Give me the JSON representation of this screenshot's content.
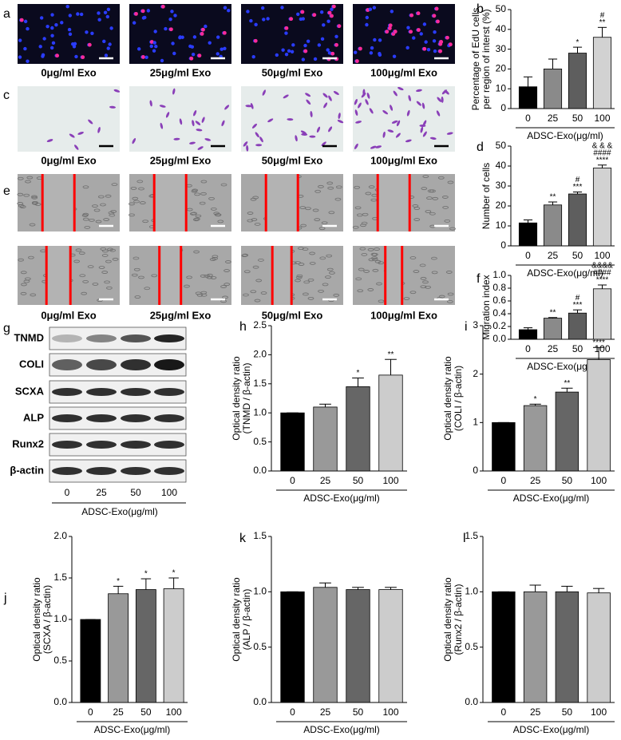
{
  "figure": {
    "image_rows": [
      {
        "label": "a",
        "captions": [
          "0μg/ml Exo",
          "25μg/ml Exo",
          "50μg/ml Exo",
          "100μg/ml Exo"
        ]
      },
      {
        "label": "c",
        "captions": [
          "0μg/ml Exo",
          "25μg/ml Exo",
          "50μg/ml Exo",
          "100μg/ml Exo"
        ]
      },
      {
        "label": "e",
        "captions": [
          "0μg/ml Exo",
          "25μg/ml Exo",
          "50μg/ml Exo",
          "100μg/ml Exo"
        ]
      }
    ],
    "blot": {
      "label": "g",
      "proteins": [
        "TNMD",
        "COLI",
        "SCXA",
        "ALP",
        "Runx2",
        "β-actin"
      ],
      "lanes": [
        "0",
        "25",
        "50",
        "100"
      ],
      "xlabel": "ADSC-Exo(μg/ml)"
    }
  },
  "chart_data": [
    {
      "type": "bar",
      "label": "b",
      "ylabel": [
        "Percentage of EdU cells",
        "per region of interst (%)"
      ],
      "xlabel": "ADSC-Exo(μg/ml)",
      "categories": [
        "0",
        "25",
        "50",
        "100"
      ],
      "values": [
        11,
        20,
        28,
        36
      ],
      "errors": [
        5,
        5,
        3,
        5
      ],
      "colors": [
        "#000000",
        "#8a8a8a",
        "#5e5e5e",
        "#d2d2d2"
      ],
      "annotations": [
        null,
        null,
        [
          "*"
        ],
        [
          "#",
          "**"
        ]
      ],
      "ylim": [
        0,
        50
      ],
      "yticks": [
        0,
        10,
        20,
        30,
        40,
        50
      ]
    },
    {
      "type": "bar",
      "label": "d",
      "ylabel": [
        "Number of cells"
      ],
      "xlabel": "ADSC-Exo(μg/ml)",
      "categories": [
        "0",
        "25",
        "50",
        "100"
      ],
      "values": [
        11.5,
        20.5,
        26,
        39
      ],
      "errors": [
        1.5,
        1.5,
        1,
        1.5
      ],
      "colors": [
        "#000000",
        "#8a8a8a",
        "#5e5e5e",
        "#d2d2d2"
      ],
      "annotations": [
        null,
        [
          "**"
        ],
        [
          "#",
          "***"
        ],
        [
          "& & &",
          "####",
          "****"
        ]
      ],
      "ylim": [
        0,
        50
      ],
      "yticks": [
        0,
        10,
        20,
        30,
        40,
        50
      ]
    },
    {
      "type": "bar",
      "label": "f",
      "ylabel": [
        "Migration index"
      ],
      "xlabel": "ADSC-Exo(μg/ml)",
      "categories": [
        "0",
        "25",
        "50",
        "100"
      ],
      "values": [
        0.15,
        0.33,
        0.41,
        0.79
      ],
      "errors": [
        0.03,
        0.01,
        0.05,
        0.06
      ],
      "colors": [
        "#000000",
        "#8a8a8a",
        "#5e5e5e",
        "#d2d2d2"
      ],
      "annotations": [
        null,
        [
          "**"
        ],
        [
          "#",
          "***"
        ],
        [
          "&&&&",
          "####",
          "****"
        ]
      ],
      "ylim": [
        0,
        1
      ],
      "yticks": [
        {
          "value": 0,
          "label": "0.0"
        },
        0.2,
        0.4,
        0.6,
        0.8,
        {
          "value": 1,
          "label": "1.0"
        }
      ]
    },
    {
      "type": "bar",
      "label": "h",
      "ylabel": [
        "Optical density ratio",
        "(TNMD / β-actin)"
      ],
      "xlabel": "ADSC-Exo(μg/ml)",
      "categories": [
        "0",
        "25",
        "50",
        "100"
      ],
      "values": [
        1.0,
        1.1,
        1.45,
        1.65
      ],
      "errors": [
        0,
        0.05,
        0.15,
        0.27
      ],
      "colors": [
        "#000000",
        "#999999",
        "#666666",
        "#cccccc"
      ],
      "annotations": [
        null,
        null,
        [
          "*"
        ],
        [
          "**"
        ]
      ],
      "ylim": [
        0,
        2.5
      ],
      "yticks": [
        {
          "value": 0,
          "label": "0.0"
        },
        0.5,
        {
          "value": 1,
          "label": "1.0"
        },
        1.5,
        {
          "value": 2,
          "label": "2.0"
        },
        2.5
      ]
    },
    {
      "type": "bar",
      "label": "i",
      "ylabel": [
        "Optical density ratio",
        "(COLI / β-actin)"
      ],
      "xlabel": "ADSC-Exo(μg/ml)",
      "categories": [
        "0",
        "25",
        "50",
        "100"
      ],
      "values": [
        1.0,
        1.35,
        1.63,
        2.3
      ],
      "errors": [
        0,
        0.03,
        0.08,
        0.25
      ],
      "colors": [
        "#000000",
        "#999999",
        "#666666",
        "#cccccc"
      ],
      "annotations": [
        null,
        [
          "*"
        ],
        [
          "**"
        ],
        [
          "****"
        ]
      ],
      "ylim": [
        0,
        3
      ],
      "yticks": [
        0,
        1,
        2,
        3
      ]
    },
    {
      "type": "bar",
      "label": "j",
      "ylabel": [
        "Optical density ratio",
        "(SCXA / β-actin)"
      ],
      "xlabel": "ADSC-Exo(μg/ml)",
      "categories": [
        "0",
        "25",
        "50",
        "100"
      ],
      "values": [
        1.0,
        1.31,
        1.36,
        1.37
      ],
      "errors": [
        0,
        0.09,
        0.13,
        0.13
      ],
      "colors": [
        "#000000",
        "#999999",
        "#666666",
        "#cccccc"
      ],
      "annotations": [
        null,
        [
          "*"
        ],
        [
          "*"
        ],
        [
          "*"
        ]
      ],
      "ylim": [
        0,
        2
      ],
      "yticks": [
        {
          "value": 0,
          "label": "0.0"
        },
        0.5,
        {
          "value": 1,
          "label": "1.0"
        },
        1.5,
        {
          "value": 2,
          "label": "2.0"
        }
      ]
    },
    {
      "type": "bar",
      "label": "k",
      "ylabel": [
        "Optical density ratio",
        "(ALP / β-actin)"
      ],
      "xlabel": "ADSC-Exo(μg/ml)",
      "categories": [
        "0",
        "25",
        "50",
        "100"
      ],
      "values": [
        1.0,
        1.04,
        1.02,
        1.02
      ],
      "errors": [
        0,
        0.04,
        0.02,
        0.02
      ],
      "colors": [
        "#000000",
        "#999999",
        "#666666",
        "#cccccc"
      ],
      "annotations": [
        null,
        null,
        null,
        null
      ],
      "ylim": [
        0,
        1.5
      ],
      "yticks": [
        {
          "value": 0,
          "label": "0.0"
        },
        0.5,
        {
          "value": 1,
          "label": "1.0"
        },
        1.5
      ]
    },
    {
      "type": "bar",
      "label": "l",
      "ylabel": [
        "Optical density ratio",
        "(Runx2 / β-actin)"
      ],
      "xlabel": "ADSC-Exo(μg/ml)",
      "categories": [
        "0",
        "25",
        "50",
        "100"
      ],
      "values": [
        1.0,
        1.0,
        1.0,
        0.99
      ],
      "errors": [
        0,
        0.06,
        0.05,
        0.04
      ],
      "colors": [
        "#000000",
        "#999999",
        "#666666",
        "#cccccc"
      ],
      "annotations": [
        null,
        null,
        null,
        null
      ],
      "ylim": [
        0,
        1.5
      ],
      "yticks": [
        {
          "value": 0,
          "label": "0.0"
        },
        0.5,
        {
          "value": 1,
          "label": "1.0"
        },
        1.5
      ]
    }
  ]
}
